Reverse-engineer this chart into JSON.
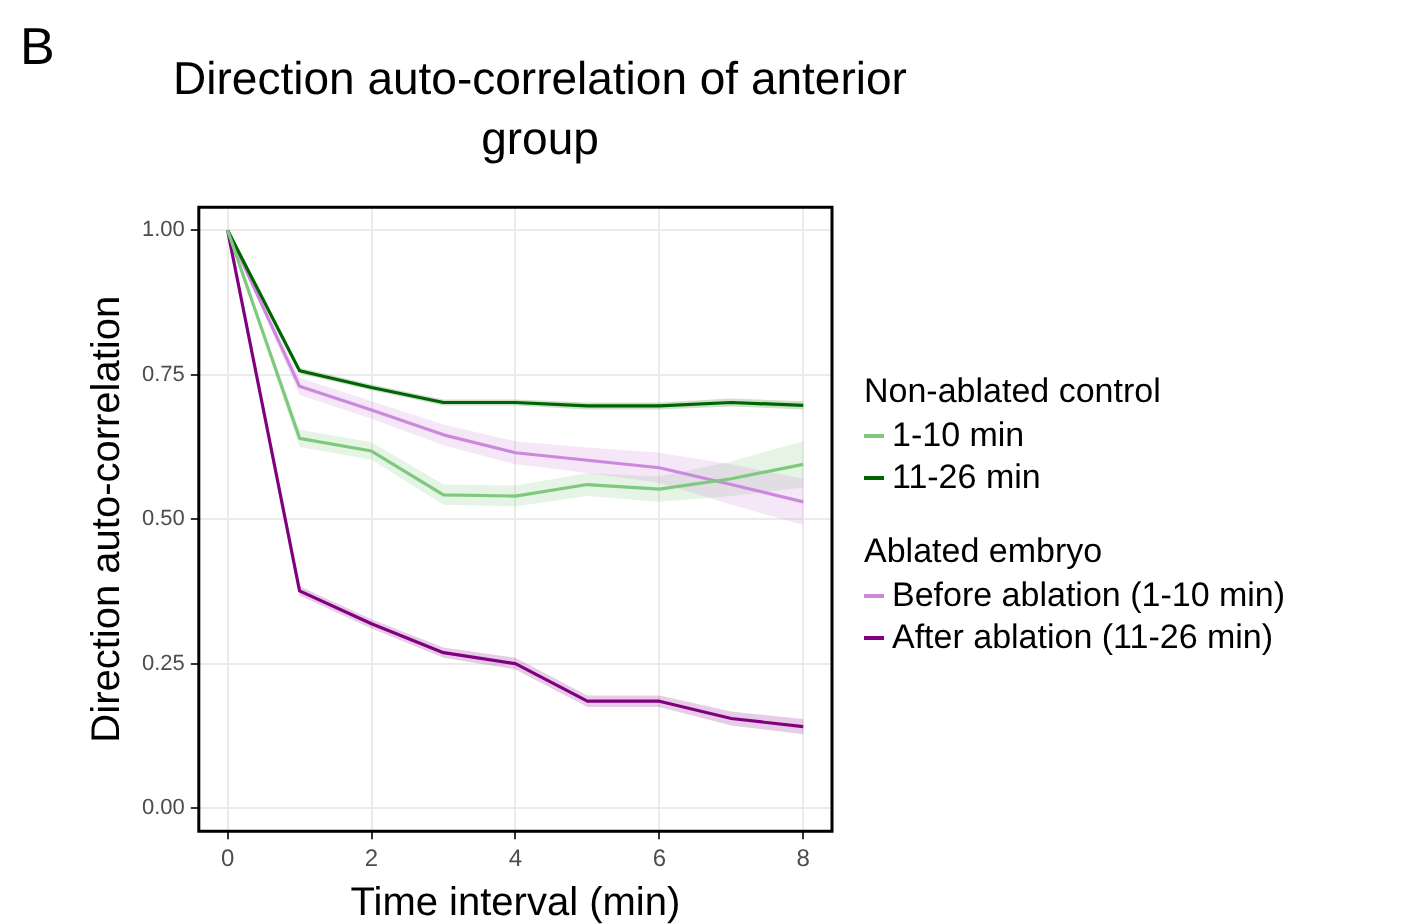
{
  "chart_data": {
    "type": "line",
    "title": "Direction auto-correlation of anterior group",
    "xlabel": "Time interval (min)",
    "ylabel": "Direction auto-correlation",
    "legend_title": "Non-ablated control",
    "annotations": [
      "B",
      "Ablated embryo"
    ],
    "x": [
      0,
      1,
      2,
      3,
      4,
      5,
      6,
      7,
      8
    ],
    "series": [
      {
        "name": "1-10 min",
        "color": "#7fc97f",
        "values": [
          1.0,
          0.64,
          0.618,
          0.542,
          0.54,
          0.56,
          0.552,
          0.57,
          0.595
        ],
        "lower": [
          1.0,
          0.625,
          0.603,
          0.525,
          0.522,
          0.54,
          0.53,
          0.54,
          0.555
        ],
        "upper": [
          1.0,
          0.655,
          0.633,
          0.56,
          0.558,
          0.58,
          0.574,
          0.6,
          0.635
        ]
      },
      {
        "name": "11-26 min",
        "color": "#006400",
        "values": [
          1.0,
          0.757,
          0.728,
          0.702,
          0.702,
          0.696,
          0.696,
          0.702,
          0.697
        ],
        "lower": [
          1.0,
          0.752,
          0.723,
          0.697,
          0.697,
          0.69,
          0.69,
          0.695,
          0.69
        ],
        "upper": [
          1.0,
          0.762,
          0.733,
          0.707,
          0.707,
          0.702,
          0.702,
          0.709,
          0.704
        ]
      },
      {
        "name": "Before ablation (1-10 min)",
        "color": "#cc88dd",
        "values": [
          1.0,
          0.73,
          0.689,
          0.646,
          0.615,
          0.602,
          0.589,
          0.56,
          0.53
        ],
        "lower": [
          1.0,
          0.715,
          0.674,
          0.628,
          0.595,
          0.58,
          0.563,
          0.525,
          0.49
        ],
        "upper": [
          1.0,
          0.745,
          0.704,
          0.664,
          0.635,
          0.624,
          0.615,
          0.595,
          0.57
        ]
      },
      {
        "name": "After ablation (11-26 min)",
        "color": "#800080",
        "values": [
          1.0,
          0.376,
          0.319,
          0.269,
          0.25,
          0.185,
          0.185,
          0.155,
          0.141
        ],
        "lower": [
          1.0,
          0.368,
          0.311,
          0.26,
          0.24,
          0.175,
          0.175,
          0.143,
          0.128
        ],
        "upper": [
          1.0,
          0.384,
          0.327,
          0.278,
          0.26,
          0.195,
          0.195,
          0.167,
          0.154
        ]
      }
    ],
    "xlim": [
      -0.4,
      8.4
    ],
    "xticks": [
      0,
      2,
      4,
      6,
      8
    ],
    "ylim": [
      -0.04,
      1.04
    ],
    "yticks": [
      {
        "value": 0,
        "label": "0.00"
      },
      {
        "value": 0.25,
        "label": "0.25"
      },
      {
        "value": 0.5,
        "label": "0.50"
      },
      {
        "value": 0.75,
        "label": "0.75"
      },
      {
        "value": 1,
        "label": "1.00"
      }
    ],
    "grid": true,
    "legend": "right",
    "marker": "none",
    "line_style": "solid"
  }
}
